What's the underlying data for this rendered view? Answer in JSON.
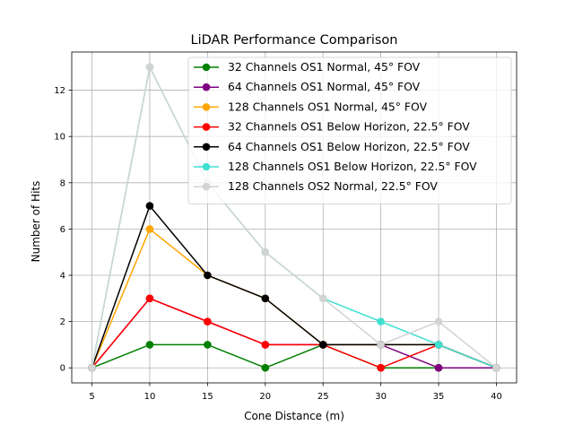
{
  "chart_data": {
    "type": "line",
    "title": "LiDAR Performance Comparison",
    "xlabel": "Cone Distance (m)",
    "ylabel": "Number of Hits",
    "x": [
      5,
      10,
      15,
      20,
      25,
      30,
      35,
      40
    ],
    "xlim": [
      3.25,
      41.75
    ],
    "ylim": [
      -0.65,
      13.65
    ],
    "xticks": [
      5,
      10,
      15,
      20,
      25,
      30,
      35,
      40
    ],
    "yticks": [
      0,
      2,
      4,
      6,
      8,
      10,
      12
    ],
    "grid": true,
    "legend_position": "top-right",
    "series": [
      {
        "name": "32 Channels OS1 Normal, 45° FOV",
        "color": "#008000",
        "values": [
          0,
          1,
          1,
          0,
          1,
          0,
          0,
          0
        ]
      },
      {
        "name": "64 Channels OS1 Normal, 45° FOV",
        "color": "#800080",
        "values": [
          0,
          3,
          2,
          1,
          1,
          1,
          0,
          0
        ]
      },
      {
        "name": "128 Channels OS1 Normal, 45° FOV",
        "color": "#ffa500",
        "values": [
          0,
          6,
          4,
          3,
          1,
          1,
          1,
          0
        ]
      },
      {
        "name": "32 Channels OS1 Below Horizon, 22.5° FOV",
        "color": "#ff0000",
        "values": [
          0,
          3,
          2,
          1,
          1,
          0,
          1,
          0
        ]
      },
      {
        "name": "64 Channels OS1 Below Horizon, 22.5° FOV",
        "color": "#000000",
        "values": [
          0,
          7,
          4,
          3,
          1,
          1,
          1,
          0
        ]
      },
      {
        "name": "128 Channels OS1 Below Horizon, 22.5° FOV",
        "color": "#40e0d0",
        "values": [
          0,
          13,
          8,
          5,
          3,
          2,
          1,
          0
        ]
      },
      {
        "name": "128 Channels OS2 Normal, 22.5° FOV",
        "color": "#d3d3d3",
        "values": [
          0,
          13,
          8,
          5,
          3,
          1,
          2,
          0
        ]
      }
    ]
  }
}
